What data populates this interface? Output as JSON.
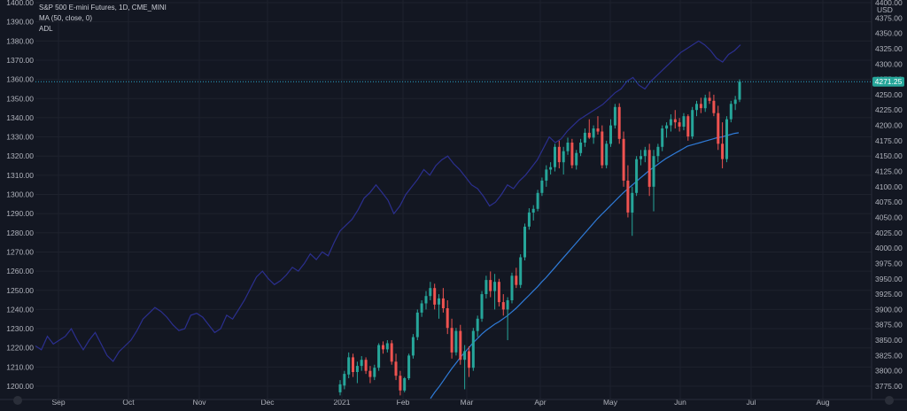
{
  "colors": {
    "background": "#131722",
    "grid": "#1e222d",
    "text": "#b2b5be",
    "up": "#26a69a",
    "down": "#ef5350",
    "ma": "#2f7bd8",
    "adl": "#2b2f8f",
    "last_price_line": "#2aa6c8"
  },
  "chart_data": {
    "type": "candlestick",
    "title": "S&P 500 E-mini Futures, 1D, CME_MINI",
    "series_labels": [
      "MA (50, close, 0)",
      "ADL"
    ],
    "currency": "USD",
    "last_price_label": "4271.25",
    "left_axis": {
      "ticks": [
        "1400.00",
        "1390.00",
        "1380.00",
        "1370.00",
        "1360.00",
        "1350.00",
        "1340.00",
        "1330.00",
        "1320.00",
        "1310.00",
        "1300.00",
        "1290.00",
        "1280.00",
        "1270.00",
        "1260.00",
        "1250.00",
        "1240.00",
        "1230.00",
        "1220.00",
        "1210.00",
        "1200.00"
      ],
      "range": [
        1195,
        1400
      ]
    },
    "right_axis": {
      "ticks": [
        "4400.00",
        "4375.00",
        "4350.00",
        "4325.00",
        "4300.00",
        "4275.00",
        "4250.00",
        "4225.00",
        "4200.00",
        "4175.00",
        "4150.00",
        "4125.00",
        "4100.00",
        "4075.00",
        "4050.00",
        "4025.00",
        "4000.00",
        "3975.00",
        "3950.00",
        "3925.00",
        "3900.00",
        "3875.00",
        "3850.00",
        "3825.00",
        "3800.00",
        "3775.00"
      ],
      "range": [
        3765,
        4400
      ]
    },
    "x_axis": {
      "labels": [
        "Sep",
        "Oct",
        "Nov",
        "Dec",
        "2021",
        "Feb",
        "Mar",
        "Apr",
        "May",
        "Jun",
        "Jul",
        "Aug"
      ]
    },
    "candles": [
      {
        "o": 3765,
        "h": 3785,
        "l": 3760,
        "c": 3778
      },
      {
        "o": 3776,
        "h": 3800,
        "l": 3770,
        "c": 3795
      },
      {
        "o": 3794,
        "h": 3830,
        "l": 3788,
        "c": 3822
      },
      {
        "o": 3822,
        "h": 3828,
        "l": 3790,
        "c": 3798
      },
      {
        "o": 3798,
        "h": 3815,
        "l": 3780,
        "c": 3808
      },
      {
        "o": 3808,
        "h": 3824,
        "l": 3800,
        "c": 3818
      },
      {
        "o": 3818,
        "h": 3822,
        "l": 3795,
        "c": 3800
      },
      {
        "o": 3800,
        "h": 3808,
        "l": 3780,
        "c": 3790
      },
      {
        "o": 3790,
        "h": 3810,
        "l": 3785,
        "c": 3805
      },
      {
        "o": 3805,
        "h": 3845,
        "l": 3800,
        "c": 3842
      },
      {
        "o": 3842,
        "h": 3848,
        "l": 3828,
        "c": 3835
      },
      {
        "o": 3835,
        "h": 3850,
        "l": 3830,
        "c": 3845
      },
      {
        "o": 3845,
        "h": 3850,
        "l": 3810,
        "c": 3815
      },
      {
        "o": 3815,
        "h": 3828,
        "l": 3785,
        "c": 3792
      },
      {
        "o": 3792,
        "h": 3800,
        "l": 3760,
        "c": 3768
      },
      {
        "o": 3768,
        "h": 3790,
        "l": 3765,
        "c": 3788
      },
      {
        "o": 3788,
        "h": 3828,
        "l": 3785,
        "c": 3825
      },
      {
        "o": 3825,
        "h": 3860,
        "l": 3820,
        "c": 3855
      },
      {
        "o": 3855,
        "h": 3900,
        "l": 3850,
        "c": 3895
      },
      {
        "o": 3895,
        "h": 3915,
        "l": 3888,
        "c": 3910
      },
      {
        "o": 3910,
        "h": 3930,
        "l": 3900,
        "c": 3922
      },
      {
        "o": 3922,
        "h": 3945,
        "l": 3915,
        "c": 3935
      },
      {
        "o": 3935,
        "h": 3942,
        "l": 3900,
        "c": 3908
      },
      {
        "o": 3908,
        "h": 3925,
        "l": 3885,
        "c": 3918
      },
      {
        "o": 3918,
        "h": 3935,
        "l": 3895,
        "c": 3902
      },
      {
        "o": 3902,
        "h": 3915,
        "l": 3860,
        "c": 3870
      },
      {
        "o": 3870,
        "h": 3885,
        "l": 3820,
        "c": 3830
      },
      {
        "o": 3830,
        "h": 3870,
        "l": 3825,
        "c": 3865
      },
      {
        "o": 3865,
        "h": 3875,
        "l": 3810,
        "c": 3818
      },
      {
        "o": 3818,
        "h": 3842,
        "l": 3770,
        "c": 3832
      },
      {
        "o": 3832,
        "h": 3840,
        "l": 3790,
        "c": 3805
      },
      {
        "o": 3805,
        "h": 3870,
        "l": 3800,
        "c": 3865
      },
      {
        "o": 3865,
        "h": 3890,
        "l": 3855,
        "c": 3885
      },
      {
        "o": 3885,
        "h": 3930,
        "l": 3880,
        "c": 3925
      },
      {
        "o": 3925,
        "h": 3955,
        "l": 3918,
        "c": 3948
      },
      {
        "o": 3948,
        "h": 3962,
        "l": 3920,
        "c": 3930
      },
      {
        "o": 3930,
        "h": 3958,
        "l": 3900,
        "c": 3945
      },
      {
        "o": 3945,
        "h": 3950,
        "l": 3905,
        "c": 3912
      },
      {
        "o": 3912,
        "h": 3925,
        "l": 3890,
        "c": 3900
      },
      {
        "o": 3900,
        "h": 3920,
        "l": 3850,
        "c": 3915
      },
      {
        "o": 3915,
        "h": 3960,
        "l": 3910,
        "c": 3955
      },
      {
        "o": 3955,
        "h": 3968,
        "l": 3935,
        "c": 3940
      },
      {
        "o": 3940,
        "h": 3990,
        "l": 3935,
        "c": 3985
      },
      {
        "o": 3985,
        "h": 4040,
        "l": 3980,
        "c": 4035
      },
      {
        "o": 4035,
        "h": 4065,
        "l": 4030,
        "c": 4058
      },
      {
        "o": 4058,
        "h": 4070,
        "l": 4045,
        "c": 4064
      },
      {
        "o": 4064,
        "h": 4095,
        "l": 4060,
        "c": 4090
      },
      {
        "o": 4090,
        "h": 4115,
        "l": 4085,
        "c": 4110
      },
      {
        "o": 4110,
        "h": 4135,
        "l": 4100,
        "c": 4128
      },
      {
        "o": 4128,
        "h": 4140,
        "l": 4120,
        "c": 4132
      },
      {
        "o": 4132,
        "h": 4170,
        "l": 4125,
        "c": 4165
      },
      {
        "o": 4165,
        "h": 4175,
        "l": 4130,
        "c": 4140
      },
      {
        "o": 4140,
        "h": 4165,
        "l": 4120,
        "c": 4158
      },
      {
        "o": 4158,
        "h": 4180,
        "l": 4152,
        "c": 4172
      },
      {
        "o": 4172,
        "h": 4178,
        "l": 4130,
        "c": 4135
      },
      {
        "o": 4135,
        "h": 4160,
        "l": 4128,
        "c": 4155
      },
      {
        "o": 4155,
        "h": 4178,
        "l": 4150,
        "c": 4172
      },
      {
        "o": 4172,
        "h": 4195,
        "l": 4165,
        "c": 4188
      },
      {
        "o": 4188,
        "h": 4210,
        "l": 4178,
        "c": 4180
      },
      {
        "o": 4180,
        "h": 4200,
        "l": 4170,
        "c": 4195
      },
      {
        "o": 4195,
        "h": 4215,
        "l": 4185,
        "c": 4190
      },
      {
        "o": 4190,
        "h": 4200,
        "l": 4130,
        "c": 4135
      },
      {
        "o": 4135,
        "h": 4175,
        "l": 4130,
        "c": 4170
      },
      {
        "o": 4170,
        "h": 4210,
        "l": 4165,
        "c": 4200
      },
      {
        "o": 4200,
        "h": 4235,
        "l": 4195,
        "c": 4230
      },
      {
        "o": 4230,
        "h": 4236,
        "l": 4170,
        "c": 4178
      },
      {
        "o": 4178,
        "h": 4190,
        "l": 4100,
        "c": 4110
      },
      {
        "o": 4110,
        "h": 4135,
        "l": 4050,
        "c": 4058
      },
      {
        "o": 4058,
        "h": 4100,
        "l": 4020,
        "c": 4090
      },
      {
        "o": 4090,
        "h": 4150,
        "l": 4085,
        "c": 4145
      },
      {
        "o": 4145,
        "h": 4160,
        "l": 4135,
        "c": 4150
      },
      {
        "o": 4150,
        "h": 4165,
        "l": 4140,
        "c": 4160
      },
      {
        "o": 4160,
        "h": 4170,
        "l": 4085,
        "c": 4100
      },
      {
        "o": 4100,
        "h": 4160,
        "l": 4060,
        "c": 4150
      },
      {
        "o": 4150,
        "h": 4170,
        "l": 4140,
        "c": 4165
      },
      {
        "o": 4165,
        "h": 4200,
        "l": 4158,
        "c": 4195
      },
      {
        "o": 4195,
        "h": 4205,
        "l": 4180,
        "c": 4200
      },
      {
        "o": 4200,
        "h": 4218,
        "l": 4190,
        "c": 4210
      },
      {
        "o": 4210,
        "h": 4225,
        "l": 4195,
        "c": 4205
      },
      {
        "o": 4205,
        "h": 4212,
        "l": 4190,
        "c": 4198
      },
      {
        "o": 4198,
        "h": 4220,
        "l": 4192,
        "c": 4215
      },
      {
        "o": 4215,
        "h": 4218,
        "l": 4175,
        "c": 4182
      },
      {
        "o": 4182,
        "h": 4230,
        "l": 4178,
        "c": 4225
      },
      {
        "o": 4225,
        "h": 4240,
        "l": 4215,
        "c": 4235
      },
      {
        "o": 4235,
        "h": 4245,
        "l": 4220,
        "c": 4228
      },
      {
        "o": 4228,
        "h": 4250,
        "l": 4222,
        "c": 4245
      },
      {
        "o": 4245,
        "h": 4255,
        "l": 4235,
        "c": 4240
      },
      {
        "o": 4240,
        "h": 4250,
        "l": 4215,
        "c": 4220
      },
      {
        "o": 4220,
        "h": 4232,
        "l": 4160,
        "c": 4170
      },
      {
        "o": 4170,
        "h": 4205,
        "l": 4130,
        "c": 4145
      },
      {
        "o": 4145,
        "h": 4215,
        "l": 4140,
        "c": 4210
      },
      {
        "o": 4210,
        "h": 4240,
        "l": 4205,
        "c": 4235
      },
      {
        "o": 4235,
        "h": 4248,
        "l": 4225,
        "c": 4242
      },
      {
        "o": 4242,
        "h": 4275,
        "l": 4238,
        "c": 4271.25
      }
    ],
    "ma_values": [
      3755,
      3765,
      3774,
      3784,
      3794,
      3804,
      3813,
      3822,
      3830,
      3838,
      3846,
      3853,
      3860,
      3866,
      3871,
      3876,
      3880,
      3885,
      3890,
      3896,
      3902,
      3909,
      3916,
      3923,
      3930,
      3937,
      3945,
      3952,
      3960,
      3968,
      3976,
      3984,
      3992,
      4000,
      4008,
      4016,
      4024,
      4032,
      4040,
      4048,
      4055,
      4062,
      4069,
      4076,
      4083,
      4090,
      4096,
      4102,
      4108,
      4114,
      4120,
      4126,
      4131,
      4136,
      4141,
      4146,
      4150,
      4154,
      4158,
      4162,
      4166,
      4168,
      4170,
      4172,
      4174,
      4176,
      4178,
      4180,
      4181,
      4183,
      4185,
      4187,
      4188
    ],
    "adl_values": [
      1221,
      1219,
      1226,
      1222,
      1224,
      1226,
      1230,
      1224,
      1219,
      1224,
      1228,
      1222,
      1216,
      1213,
      1218,
      1221,
      1224,
      1229,
      1235,
      1238,
      1241,
      1239,
      1236,
      1232,
      1229,
      1230,
      1237,
      1238,
      1236,
      1232,
      1228,
      1230,
      1237,
      1235,
      1240,
      1245,
      1251,
      1257,
      1260,
      1256,
      1253,
      1255,
      1258,
      1262,
      1260,
      1264,
      1269,
      1266,
      1270,
      1268,
      1275,
      1281,
      1284,
      1287,
      1292,
      1298,
      1301,
      1305,
      1301,
      1297,
      1290,
      1294,
      1300,
      1304,
      1308,
      1313,
      1310,
      1315,
      1318,
      1320,
      1316,
      1313,
      1309,
      1305,
      1303,
      1299,
      1294,
      1296,
      1300,
      1305,
      1303,
      1307,
      1310,
      1314,
      1318,
      1324,
      1330,
      1327,
      1329,
      1333,
      1336,
      1339,
      1341,
      1343,
      1345,
      1347,
      1350,
      1353,
      1355,
      1359,
      1361,
      1357,
      1355,
      1359,
      1362,
      1365,
      1368,
      1371,
      1374,
      1376,
      1378,
      1380,
      1378,
      1375,
      1371,
      1369,
      1373,
      1375,
      1378
    ]
  }
}
